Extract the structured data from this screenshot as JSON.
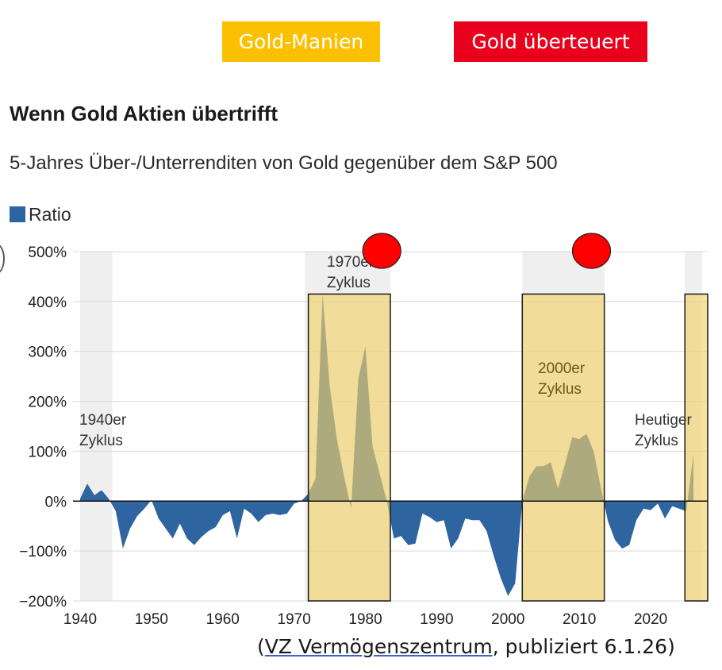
{
  "header_legend": {
    "mania_label": "Gold-Manien",
    "overvalued_label": "Gold überteuert",
    "mania_color": "#fbc002",
    "overvalued_color": "#e8001c"
  },
  "title": "Wenn Gold Aktien übertrifft",
  "subtitle": "5-Jahres Über-/Unterrenditen von Gold gegenüber dem S&P 500",
  "series_legend_label": "Ratio",
  "source": {
    "open": "(",
    "link_text": "VZ Vermögenszentrum",
    "rest": ", publiziert 6.1.26)"
  },
  "chart_data": {
    "type": "area",
    "title": "Wenn Gold Aktien übertrifft",
    "subtitle": "5-Jahres Über-/Unterrenditen von Gold gegenüber dem S&P 500",
    "xlabel": "",
    "ylabel": "",
    "xlim": [
      1939,
      2028
    ],
    "ylim": [
      -200,
      500
    ],
    "x_ticks": [
      1940,
      1950,
      1960,
      1970,
      1980,
      1990,
      2000,
      2010,
      2020
    ],
    "y_ticks": [
      -200,
      -100,
      0,
      100,
      200,
      300,
      400,
      500
    ],
    "y_tick_labels": [
      "−200%",
      "−100%",
      "0%",
      "100%",
      "200%",
      "300%",
      "400%",
      "500%"
    ],
    "legend": {
      "position": "top-left"
    },
    "grid": {
      "horizontal": true,
      "vertical": false
    },
    "series": [
      {
        "name": "Ratio",
        "color": "#2e64a0",
        "x": [
          1940,
          1941,
          1942,
          1943,
          1944,
          1945,
          1946,
          1947,
          1948,
          1949,
          1950,
          1951,
          1952,
          1953,
          1954,
          1955,
          1956,
          1957,
          1958,
          1959,
          1960,
          1961,
          1962,
          1963,
          1964,
          1965,
          1966,
          1967,
          1968,
          1969,
          1970,
          1971,
          1972,
          1973,
          1974,
          1975,
          1976,
          1977,
          1978,
          1979,
          1980,
          1981,
          1982,
          1983,
          1984,
          1985,
          1986,
          1987,
          1988,
          1989,
          1990,
          1991,
          1992,
          1993,
          1994,
          1995,
          1996,
          1997,
          1998,
          1999,
          2000,
          2001,
          2002,
          2003,
          2004,
          2005,
          2006,
          2007,
          2008,
          2009,
          2010,
          2011,
          2012,
          2013,
          2014,
          2015,
          2016,
          2017,
          2018,
          2019,
          2020,
          2021,
          2022,
          2023,
          2024,
          2025,
          2026
        ],
        "values": [
          5,
          35,
          12,
          22,
          5,
          -20,
          -95,
          -55,
          -30,
          -15,
          2,
          -35,
          -55,
          -75,
          -45,
          -75,
          -88,
          -72,
          -60,
          -52,
          -28,
          -20,
          -75,
          -15,
          -25,
          -42,
          -28,
          -25,
          -28,
          -25,
          -5,
          0,
          15,
          45,
          415,
          230,
          125,
          50,
          -15,
          245,
          310,
          110,
          55,
          0,
          -75,
          -70,
          -88,
          -85,
          -25,
          -32,
          -42,
          -38,
          -95,
          -75,
          -35,
          -38,
          -38,
          -60,
          -110,
          -155,
          -190,
          -165,
          0,
          50,
          70,
          70,
          78,
          25,
          75,
          128,
          124,
          135,
          100,
          28,
          -40,
          -78,
          -95,
          -88,
          -38,
          -15,
          -18,
          -5,
          -35,
          -10,
          -15,
          -20,
          95
        ]
      }
    ],
    "regions": [
      {
        "type": "shade",
        "x": [
          1940,
          1944.5
        ],
        "label": "1940er\nZyklus"
      },
      {
        "type": "shade",
        "x": [
          1971.5,
          1983.5
        ],
        "label": "1970er\nZyklus"
      },
      {
        "type": "shade",
        "x": [
          2002,
          2013.5
        ],
        "label": "2000er\nZyklus"
      },
      {
        "type": "shade",
        "x": [
          2024.8,
          2027.2
        ],
        "label": "Heutiger\nZyklus"
      }
    ],
    "mania_boxes": [
      {
        "x": [
          1972,
          1983.5
        ],
        "y": [
          -200,
          415
        ]
      },
      {
        "x": [
          2002,
          2013.5
        ],
        "y": [
          -200,
          415
        ]
      },
      {
        "x": [
          2024.8,
          2028
        ],
        "y": [
          -200,
          415
        ]
      }
    ],
    "overvalued_markers": [
      {
        "x": 1982.3,
        "y": 500
      },
      {
        "x": 2011.7,
        "y": 500
      }
    ]
  }
}
